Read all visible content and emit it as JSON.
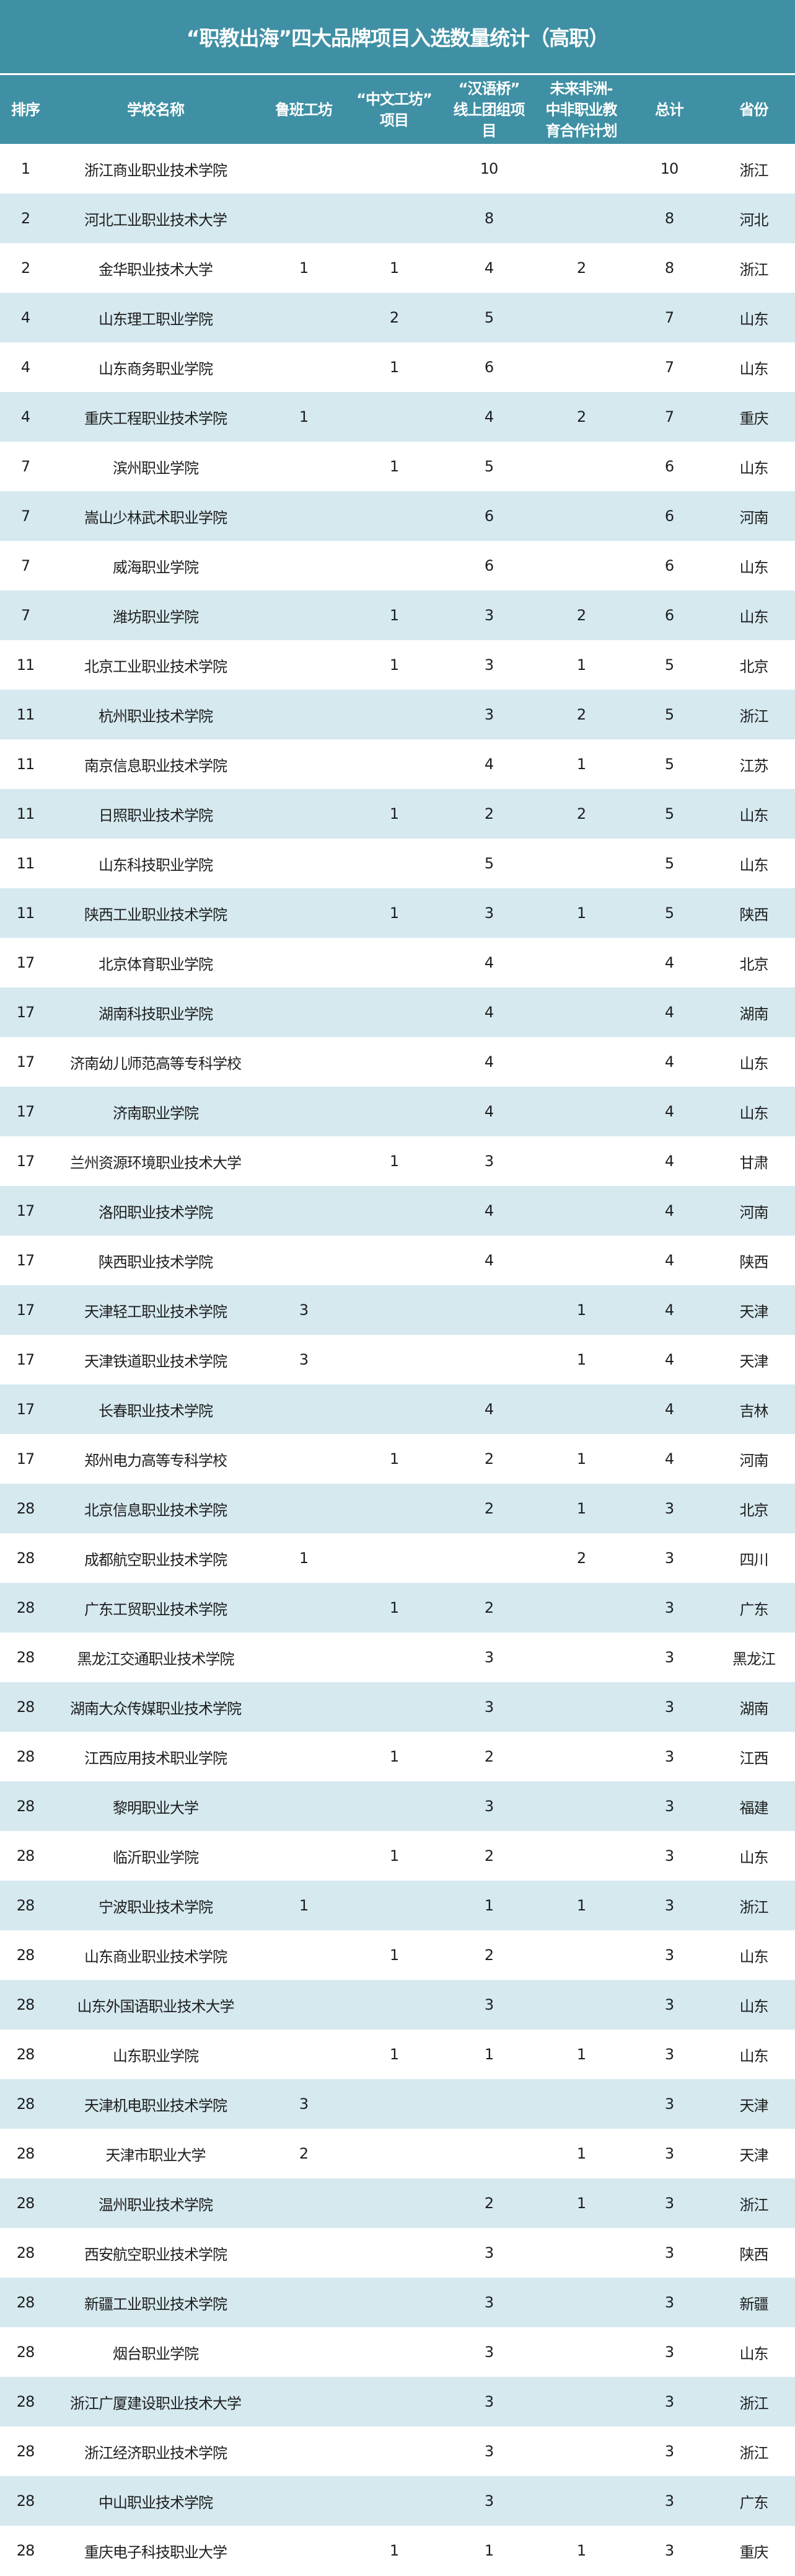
{
  "title": "“职教出海”四大品牌项目入选数量统计（高职）",
  "colors": {
    "header_bg": "#3f90a4",
    "stripe": "#d5e9ef"
  },
  "columns": [
    "排序",
    "学校名称",
    "鲁班工坊",
    "“中文工坊”\n项目",
    "“汉语桥”\n线上团组项\n目",
    "未来非洲-\n中非职业教\n育合作计划",
    "总计",
    "省份"
  ],
  "rows": [
    [
      "1",
      "浙江商业职业技术学院",
      "",
      "",
      "10",
      "",
      "10",
      "浙江"
    ],
    [
      "2",
      "河北工业职业技术大学",
      "",
      "",
      "8",
      "",
      "8",
      "河北"
    ],
    [
      "2",
      "金华职业技术大学",
      "1",
      "1",
      "4",
      "2",
      "8",
      "浙江"
    ],
    [
      "4",
      "山东理工职业学院",
      "",
      "2",
      "5",
      "",
      "7",
      "山东"
    ],
    [
      "4",
      "山东商务职业学院",
      "",
      "1",
      "6",
      "",
      "7",
      "山东"
    ],
    [
      "4",
      "重庆工程职业技术学院",
      "1",
      "",
      "4",
      "2",
      "7",
      "重庆"
    ],
    [
      "7",
      "滨州职业学院",
      "",
      "1",
      "5",
      "",
      "6",
      "山东"
    ],
    [
      "7",
      "嵩山少林武术职业学院",
      "",
      "",
      "6",
      "",
      "6",
      "河南"
    ],
    [
      "7",
      "威海职业学院",
      "",
      "",
      "6",
      "",
      "6",
      "山东"
    ],
    [
      "7",
      "潍坊职业学院",
      "",
      "1",
      "3",
      "2",
      "6",
      "山东"
    ],
    [
      "11",
      "北京工业职业技术学院",
      "",
      "1",
      "3",
      "1",
      "5",
      "北京"
    ],
    [
      "11",
      "杭州职业技术学院",
      "",
      "",
      "3",
      "2",
      "5",
      "浙江"
    ],
    [
      "11",
      "南京信息职业技术学院",
      "",
      "",
      "4",
      "1",
      "5",
      "江苏"
    ],
    [
      "11",
      "日照职业技术学院",
      "",
      "1",
      "2",
      "2",
      "5",
      "山东"
    ],
    [
      "11",
      "山东科技职业学院",
      "",
      "",
      "5",
      "",
      "5",
      "山东"
    ],
    [
      "11",
      "陕西工业职业技术学院",
      "",
      "1",
      "3",
      "1",
      "5",
      "陕西"
    ],
    [
      "17",
      "北京体育职业学院",
      "",
      "",
      "4",
      "",
      "4",
      "北京"
    ],
    [
      "17",
      "湖南科技职业学院",
      "",
      "",
      "4",
      "",
      "4",
      "湖南"
    ],
    [
      "17",
      "济南幼儿师范高等专科学校",
      "",
      "",
      "4",
      "",
      "4",
      "山东"
    ],
    [
      "17",
      "济南职业学院",
      "",
      "",
      "4",
      "",
      "4",
      "山东"
    ],
    [
      "17",
      "兰州资源环境职业技术大学",
      "",
      "1",
      "3",
      "",
      "4",
      "甘肃"
    ],
    [
      "17",
      "洛阳职业技术学院",
      "",
      "",
      "4",
      "",
      "4",
      "河南"
    ],
    [
      "17",
      "陕西职业技术学院",
      "",
      "",
      "4",
      "",
      "4",
      "陕西"
    ],
    [
      "17",
      "天津轻工职业技术学院",
      "3",
      "",
      "",
      "1",
      "4",
      "天津"
    ],
    [
      "17",
      "天津铁道职业技术学院",
      "3",
      "",
      "",
      "1",
      "4",
      "天津"
    ],
    [
      "17",
      "长春职业技术学院",
      "",
      "",
      "4",
      "",
      "4",
      "吉林"
    ],
    [
      "17",
      "郑州电力高等专科学校",
      "",
      "1",
      "2",
      "1",
      "4",
      "河南"
    ],
    [
      "28",
      "北京信息职业技术学院",
      "",
      "",
      "2",
      "1",
      "3",
      "北京"
    ],
    [
      "28",
      "成都航空职业技术学院",
      "1",
      "",
      "",
      "2",
      "3",
      "四川"
    ],
    [
      "28",
      "广东工贸职业技术学院",
      "",
      "1",
      "2",
      "",
      "3",
      "广东"
    ],
    [
      "28",
      "黑龙江交通职业技术学院",
      "",
      "",
      "3",
      "",
      "3",
      "黑龙江"
    ],
    [
      "28",
      "湖南大众传媒职业技术学院",
      "",
      "",
      "3",
      "",
      "3",
      "湖南"
    ],
    [
      "28",
      "江西应用技术职业学院",
      "",
      "1",
      "2",
      "",
      "3",
      "江西"
    ],
    [
      "28",
      "黎明职业大学",
      "",
      "",
      "3",
      "",
      "3",
      "福建"
    ],
    [
      "28",
      "临沂职业学院",
      "",
      "1",
      "2",
      "",
      "3",
      "山东"
    ],
    [
      "28",
      "宁波职业技术学院",
      "1",
      "",
      "1",
      "1",
      "3",
      "浙江"
    ],
    [
      "28",
      "山东商业职业技术学院",
      "",
      "1",
      "2",
      "",
      "3",
      "山东"
    ],
    [
      "28",
      "山东外国语职业技术大学",
      "",
      "",
      "3",
      "",
      "3",
      "山东"
    ],
    [
      "28",
      "山东职业学院",
      "",
      "1",
      "1",
      "1",
      "3",
      "山东"
    ],
    [
      "28",
      "天津机电职业技术学院",
      "3",
      "",
      "",
      "",
      "3",
      "天津"
    ],
    [
      "28",
      "天津市职业大学",
      "2",
      "",
      "",
      "1",
      "3",
      "天津"
    ],
    [
      "28",
      "温州职业技术学院",
      "",
      "",
      "2",
      "1",
      "3",
      "浙江"
    ],
    [
      "28",
      "西安航空职业技术学院",
      "",
      "",
      "3",
      "",
      "3",
      "陕西"
    ],
    [
      "28",
      "新疆工业职业技术学院",
      "",
      "",
      "3",
      "",
      "3",
      "新疆"
    ],
    [
      "28",
      "烟台职业学院",
      "",
      "",
      "3",
      "",
      "3",
      "山东"
    ],
    [
      "28",
      "浙江广厦建设职业技术大学",
      "",
      "",
      "3",
      "",
      "3",
      "浙江"
    ],
    [
      "28",
      "浙江经济职业技术学院",
      "",
      "",
      "3",
      "",
      "3",
      "浙江"
    ],
    [
      "28",
      "中山职业技术学院",
      "",
      "",
      "3",
      "",
      "3",
      "广东"
    ],
    [
      "28",
      "重庆电子科技职业大学",
      "",
      "1",
      "1",
      "1",
      "3",
      "重庆"
    ]
  ]
}
